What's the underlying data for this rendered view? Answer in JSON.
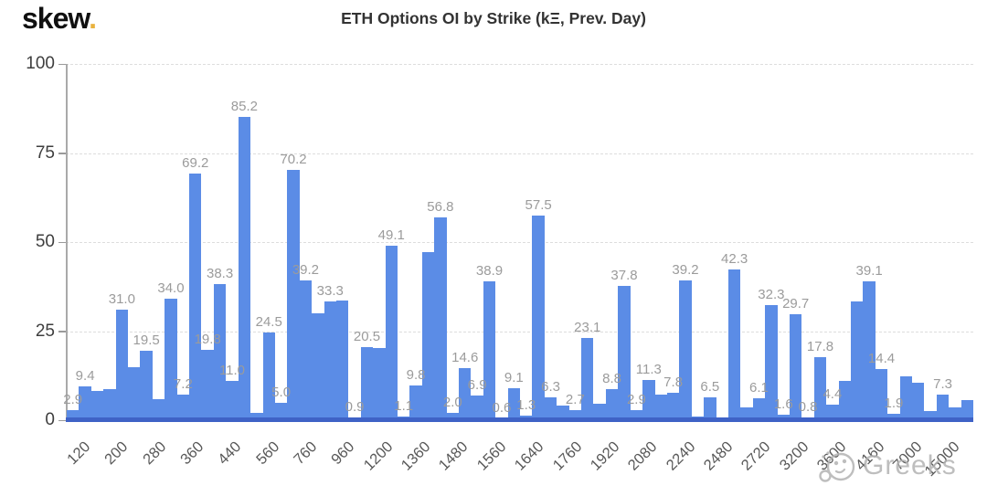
{
  "header": {
    "logo_text": "skew",
    "logo_dot": ".",
    "title": "ETH Options OI by Strike (kΞ, Prev. Day)"
  },
  "watermark": {
    "icon": "wechat-emoji-icon",
    "text": "Greeks"
  },
  "colors": {
    "bar": "#5b8ce6",
    "axis_baseline": "#3f62c6",
    "bar_value_label": "#9b9b9b",
    "gridline": "#dddddd",
    "x_tick_text": "#595959",
    "y_tick_text": "#3e3e3e",
    "logo_dot": "#e9b23e",
    "title_text": "#333333",
    "watermark_gray": "#b3b3b3"
  },
  "chart_data": {
    "type": "bar",
    "title": "ETH Options OI by Strike (kΞ, Prev. Day)",
    "xlabel": "",
    "ylabel": "",
    "ylim": [
      0,
      100
    ],
    "yticks": [
      0,
      25,
      50,
      75,
      100
    ],
    "grid": "horizontal-dashed",
    "legend": "none",
    "xticklabels": [
      "120",
      "200",
      "280",
      "360",
      "440",
      "560",
      "760",
      "960",
      "1200",
      "1360",
      "1480",
      "1560",
      "1640",
      "1760",
      "1920",
      "2080",
      "2240",
      "2480",
      "2720",
      "3200",
      "3600",
      "4160",
      "7000",
      "15000"
    ],
    "bars": [
      {
        "v": 2.9,
        "l": "2.9"
      },
      {
        "v": 9.4,
        "l": "9.4"
      },
      {
        "v": 8.1
      },
      {
        "v": 8.7
      },
      {
        "v": 31.0,
        "l": "31.0"
      },
      {
        "v": 15.0
      },
      {
        "v": 19.5,
        "l": "19.5"
      },
      {
        "v": 6.0
      },
      {
        "v": 34.0,
        "l": "34.0"
      },
      {
        "v": 7.2,
        "l": "7.2"
      },
      {
        "v": 69.2,
        "l": "69.2"
      },
      {
        "v": 19.8,
        "l": "19.8"
      },
      {
        "v": 38.3,
        "l": "38.3"
      },
      {
        "v": 11.0,
        "l": "11.0"
      },
      {
        "v": 85.2,
        "l": "85.2"
      },
      {
        "v": 2.1
      },
      {
        "v": 24.5,
        "l": "24.5"
      },
      {
        "v": 5.0,
        "l": "5.0"
      },
      {
        "v": 70.2,
        "l": "70.2"
      },
      {
        "v": 39.2,
        "l": "39.2"
      },
      {
        "v": 30.0
      },
      {
        "v": 33.3,
        "l": "33.3"
      },
      {
        "v": 33.5
      },
      {
        "v": 0.9,
        "l": "0.9"
      },
      {
        "v": 20.5,
        "l": "20.5"
      },
      {
        "v": 20.3
      },
      {
        "v": 49.1,
        "l": "49.1"
      },
      {
        "v": 1.1,
        "l": "1.1"
      },
      {
        "v": 9.8,
        "l": "9.8"
      },
      {
        "v": 47.3
      },
      {
        "v": 56.8,
        "l": "56.8"
      },
      {
        "v": 2.0,
        "l": "2.0"
      },
      {
        "v": 14.6,
        "l": "14.6"
      },
      {
        "v": 6.9,
        "l": "6.9"
      },
      {
        "v": 38.9,
        "l": "38.9"
      },
      {
        "v": 0.6,
        "l": "0.6"
      },
      {
        "v": 9.1,
        "l": "9.1"
      },
      {
        "v": 1.3,
        "l": "1.3"
      },
      {
        "v": 57.5,
        "l": "57.5"
      },
      {
        "v": 6.3,
        "l": "6.3"
      },
      {
        "v": 4.0
      },
      {
        "v": 2.7,
        "l": "2.7"
      },
      {
        "v": 23.1,
        "l": "23.1"
      },
      {
        "v": 4.7
      },
      {
        "v": 8.8,
        "l": "8.8"
      },
      {
        "v": 37.8,
        "l": "37.8"
      },
      {
        "v": 2.9,
        "l": "2.9"
      },
      {
        "v": 11.3,
        "l": "11.3"
      },
      {
        "v": 7.3
      },
      {
        "v": 7.8,
        "l": "7.8"
      },
      {
        "v": 39.2,
        "l": "39.2"
      },
      {
        "v": 1.0
      },
      {
        "v": 6.5,
        "l": "6.5"
      },
      {
        "v": 0.6
      },
      {
        "v": 42.3,
        "l": "42.3"
      },
      {
        "v": 3.5
      },
      {
        "v": 6.1,
        "l": "6.1"
      },
      {
        "v": 32.3,
        "l": "32.3"
      },
      {
        "v": 1.6,
        "l": "1.6"
      },
      {
        "v": 29.7,
        "l": "29.7"
      },
      {
        "v": 0.8,
        "l": "0.8"
      },
      {
        "v": 17.8,
        "l": "17.8"
      },
      {
        "v": 4.4,
        "l": "4.4"
      },
      {
        "v": 11.0
      },
      {
        "v": 33.3
      },
      {
        "v": 39.1,
        "l": "39.1"
      },
      {
        "v": 14.4,
        "l": "14.4"
      },
      {
        "v": 1.9,
        "l": "1.9"
      },
      {
        "v": 12.3
      },
      {
        "v": 10.5
      },
      {
        "v": 2.6
      },
      {
        "v": 7.3,
        "l": "7.3"
      },
      {
        "v": 3.5
      },
      {
        "v": 5.7
      }
    ]
  }
}
